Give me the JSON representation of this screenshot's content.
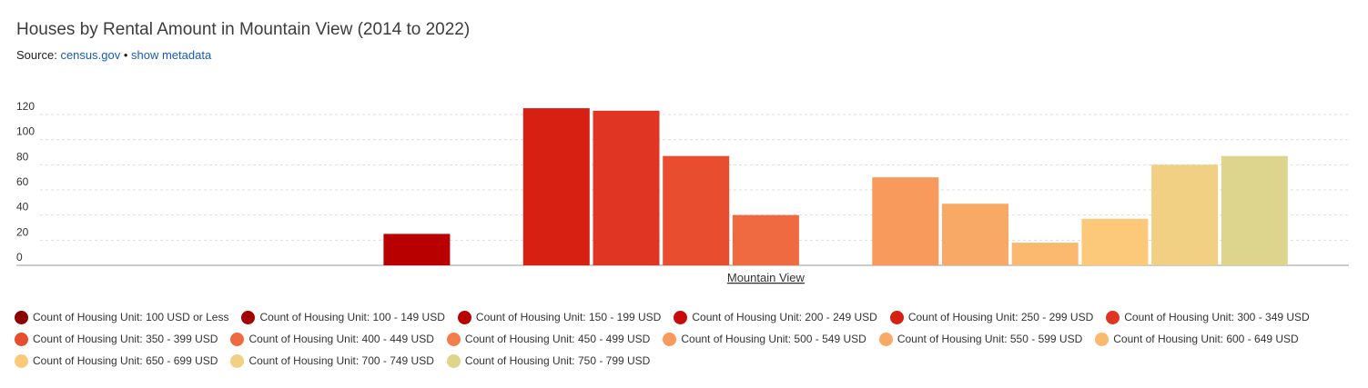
{
  "header": {
    "title": "Houses by Rental Amount in Mountain View (2014 to 2022)",
    "source_prefix": "Source:",
    "source_link": "census.gov",
    "separator": "•",
    "metadata_link": "show metadata"
  },
  "chart_data": {
    "type": "bar",
    "categories": [
      "Mountain View"
    ],
    "ylim": [
      0,
      120
    ],
    "yticks": [
      0,
      20,
      40,
      60,
      80,
      100,
      120
    ],
    "grid": true,
    "legend_position": "bottom",
    "series": [
      {
        "name": "Count of Housing Unit: 100 USD or Less",
        "color": "#8b0000",
        "value": 0
      },
      {
        "name": "Count of Housing Unit: 100 - 149 USD",
        "color": "#a30000",
        "value": 0
      },
      {
        "name": "Count of Housing Unit: 150 - 199 USD",
        "color": "#b90000",
        "value": 25
      },
      {
        "name": "Count of Housing Unit: 200 - 249 USD",
        "color": "#c90a0a",
        "value": 0
      },
      {
        "name": "Count of Housing Unit: 250 - 299 USD",
        "color": "#d71f12",
        "value": 125
      },
      {
        "name": "Count of Housing Unit: 300 - 349 USD",
        "color": "#e03523",
        "value": 123
      },
      {
        "name": "Count of Housing Unit: 350 - 399 USD",
        "color": "#e94d30",
        "value": 87
      },
      {
        "name": "Count of Housing Unit: 400 - 449 USD",
        "color": "#ef6a40",
        "value": 40
      },
      {
        "name": "Count of Housing Unit: 450 - 499 USD",
        "color": "#f27f4a",
        "value": 0
      },
      {
        "name": "Count of Housing Unit: 500 - 549 USD",
        "color": "#f79a5b",
        "value": 70
      },
      {
        "name": "Count of Housing Unit: 550 - 599 USD",
        "color": "#f9a966",
        "value": 49
      },
      {
        "name": "Count of Housing Unit: 600 - 649 USD",
        "color": "#fbb970",
        "value": 18
      },
      {
        "name": "Count of Housing Unit: 650 - 699 USD",
        "color": "#fcc97b",
        "value": 37
      },
      {
        "name": "Count of Housing Unit: 700 - 749 USD",
        "color": "#f1d084",
        "value": 80
      },
      {
        "name": "Count of Housing Unit: 750 - 799 USD",
        "color": "#ddd48e",
        "value": 87
      }
    ]
  }
}
